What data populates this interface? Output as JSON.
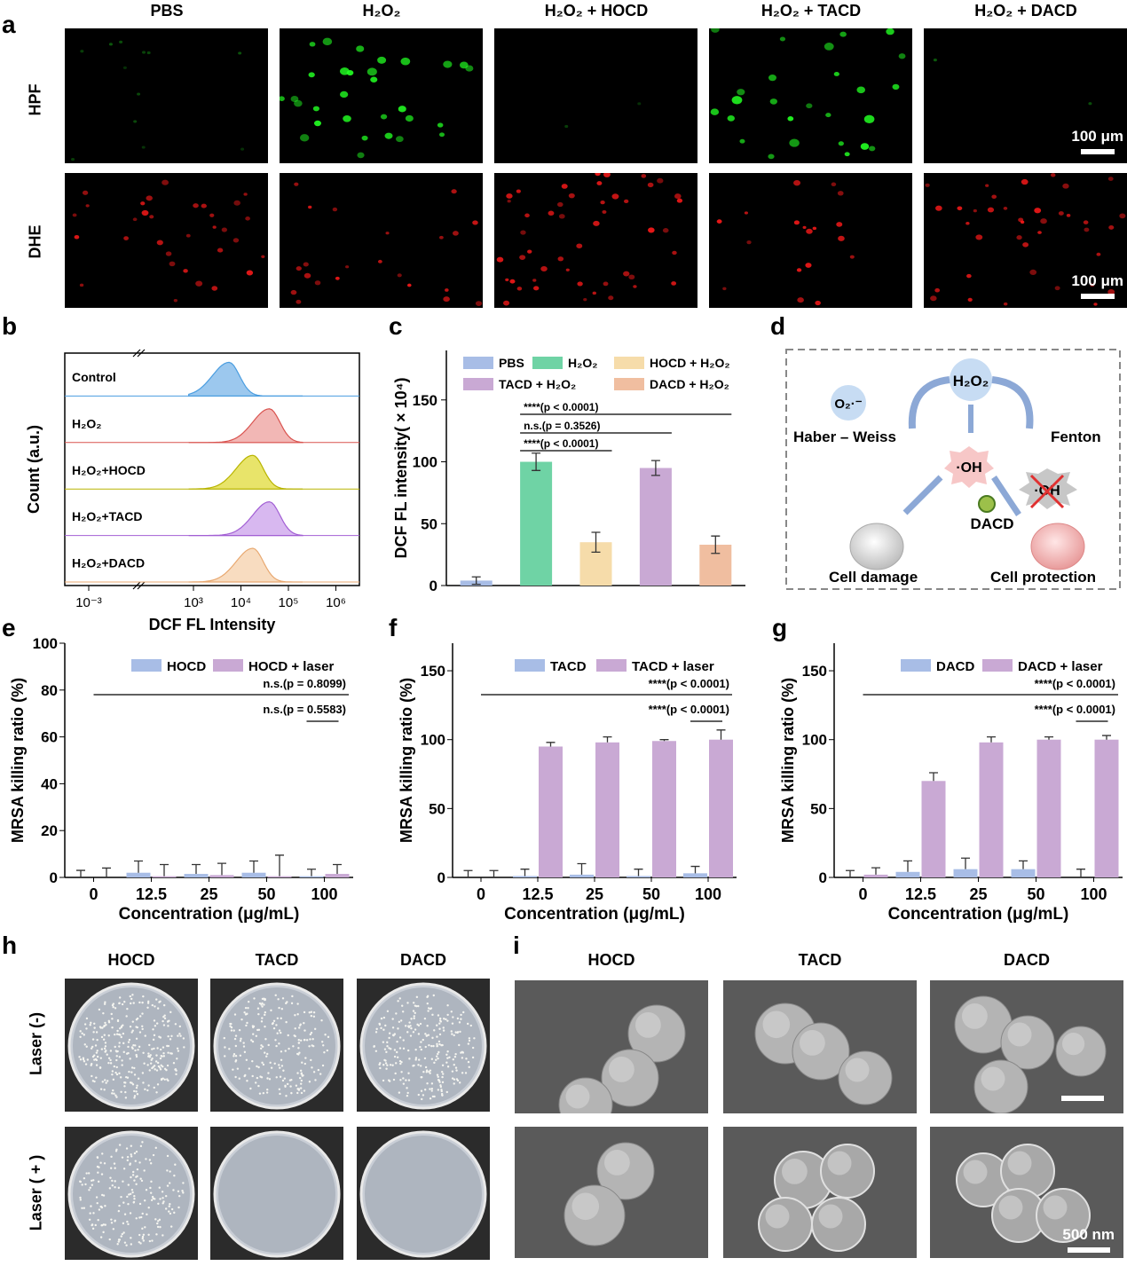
{
  "panel_labels": {
    "a": "a",
    "b": "b",
    "c": "c",
    "d": "d",
    "e": "e",
    "f": "f",
    "g": "g",
    "h": "h",
    "i": "i"
  },
  "panel_a": {
    "columns": [
      "PBS",
      "H₂O₂",
      "H₂O₂ + HOCD",
      "H₂O₂ + TACD",
      "H₂O₂ + DACD"
    ],
    "rows": [
      "HPF",
      "DHE"
    ],
    "scale_label": "100 μm",
    "colors": {
      "hpf": "#22ff22",
      "dhe": "#ff1a1a"
    }
  },
  "panel_b": {
    "ylabel": "Count (a.u.)",
    "xlabel": "DCF FL Intensity",
    "ticks": [
      "10⁻³",
      "10³",
      "10⁴",
      "10⁵",
      "10⁶"
    ],
    "samples": [
      {
        "name": "Control",
        "color": "#4a9de0",
        "fill": "#9cc8ee",
        "peak_log": 3.75
      },
      {
        "name": "H₂O₂",
        "color": "#d9534f",
        "fill": "#f2b7b5",
        "peak_log": 4.6
      },
      {
        "name": "H₂O₂+HOCD",
        "color": "#b8b400",
        "fill": "#e8e46a",
        "peak_log": 4.25
      },
      {
        "name": "H₂O₂+TACD",
        "color": "#a25fd4",
        "fill": "#d8b8f0",
        "peak_log": 4.6
      },
      {
        "name": "H₂O₂+DACD",
        "color": "#e8a870",
        "fill": "#f8dcc0",
        "peak_log": 4.25
      }
    ]
  },
  "chart_data": [
    {
      "panel": "c",
      "type": "bar",
      "ylabel": "DCF FL intensity( × 10⁴)",
      "ylim": [
        0,
        190
      ],
      "yticks": [
        0,
        50,
        100,
        150
      ],
      "categories": [
        "PBS",
        "H₂O₂",
        "HOCD + H₂O₂",
        "TACD + H₂O₂",
        "DACD + H₂O₂"
      ],
      "values": [
        4,
        100,
        35,
        95,
        33
      ],
      "errors": [
        3,
        7,
        8,
        6,
        7
      ],
      "colors": [
        "#a8bde6",
        "#6fd3a5",
        "#f6dcaa",
        "#c9a9d4",
        "#f0bea0"
      ],
      "legend": [
        "PBS",
        "H₂O₂",
        "HOCD + H₂O₂",
        "TACD + H₂O₂",
        "DACD + H₂O₂"
      ],
      "annotations": [
        "****(p < 0.0001)",
        "n.s.(p = 0.3526)",
        "****(p < 0.0001)"
      ]
    },
    {
      "panel": "e",
      "type": "bar",
      "xlabel": "Concentration (μg/mL)",
      "ylabel": "MRSA killing ratio (%)",
      "ylim": [
        0,
        100
      ],
      "yticks": [
        0,
        20,
        40,
        60,
        80,
        100
      ],
      "categories": [
        "0",
        "12.5",
        "25",
        "50",
        "100"
      ],
      "series": [
        {
          "name": "HOCD",
          "values": [
            0,
            2,
            1.5,
            2,
            0.5
          ],
          "errors": [
            3,
            5,
            4,
            5,
            3
          ],
          "color": "#a8bde6"
        },
        {
          "name": "HOCD + laser",
          "values": [
            0,
            0.5,
            1,
            0.5,
            1.5
          ],
          "errors": [
            4,
            5,
            5,
            9,
            4
          ],
          "color": "#c9a9d4"
        }
      ],
      "annotations": [
        "n.s.(p = 0.8099)",
        "n.s.(p = 0.5583)"
      ]
    },
    {
      "panel": "f",
      "type": "bar",
      "xlabel": "Concentration (μg/mL)",
      "ylabel": "MRSA killing ratio (%)",
      "ylim": [
        0,
        170
      ],
      "yticks": [
        0,
        50,
        100,
        150
      ],
      "categories": [
        "0",
        "12.5",
        "25",
        "50",
        "100"
      ],
      "series": [
        {
          "name": "TACD",
          "values": [
            0,
            1,
            2,
            1,
            3
          ],
          "errors": [
            5,
            5,
            8,
            5,
            5
          ],
          "color": "#a8bde6"
        },
        {
          "name": "TACD + laser",
          "values": [
            0,
            95,
            98,
            99,
            100
          ],
          "errors": [
            5,
            3,
            4,
            1,
            7
          ],
          "color": "#c9a9d4"
        }
      ],
      "annotations": [
        "****(p < 0.0001)",
        "****(p < 0.0001)"
      ]
    },
    {
      "panel": "g",
      "type": "bar",
      "xlabel": "Concentration (μg/mL)",
      "ylabel": "MRSA killing ratio (%)",
      "ylim": [
        0,
        170
      ],
      "yticks": [
        0,
        50,
        100,
        150
      ],
      "categories": [
        "0",
        "12.5",
        "25",
        "50",
        "100"
      ],
      "series": [
        {
          "name": "DACD",
          "values": [
            0,
            4,
            6,
            6,
            0
          ],
          "errors": [
            5,
            8,
            8,
            6,
            6
          ],
          "color": "#a8bde6"
        },
        {
          "name": "DACD + laser",
          "values": [
            2,
            70,
            98,
            100,
            100
          ],
          "errors": [
            5,
            6,
            4,
            2,
            3
          ],
          "color": "#c9a9d4"
        }
      ],
      "annotations": [
        "****(p < 0.0001)",
        "****(p < 0.0001)"
      ]
    }
  ],
  "panel_d": {
    "h2o2": "H₂O₂",
    "o2": "O₂·⁻",
    "haber": "Haber – Weiss",
    "fenton": "Fenton",
    "oh": "·OH",
    "oh_blocked": "·OH",
    "dacd": "DACD",
    "cell_damage": "Cell damage",
    "cell_protection": "Cell protection"
  },
  "panel_h": {
    "columns": [
      "HOCD",
      "TACD",
      "DACD"
    ],
    "rows": [
      "Laser (-)",
      "Laser ( + )"
    ]
  },
  "panel_i": {
    "columns": [
      "HOCD",
      "TACD",
      "DACD"
    ],
    "scale_label": "500 nm"
  }
}
